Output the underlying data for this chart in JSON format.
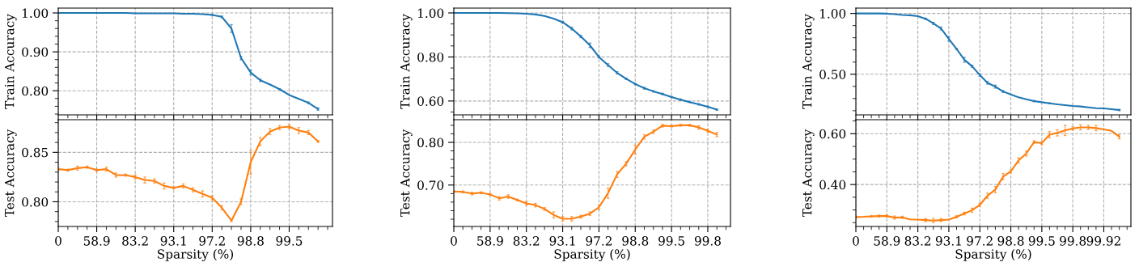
{
  "chart_data": [
    {
      "type": "line",
      "ylabel": "Train Accuracy",
      "tick_labels": "y",
      "grid": true,
      "ylim": [
        0.738,
        1.0125
      ],
      "categories": [
        "0",
        null,
        null,
        null,
        "58.9",
        null,
        null,
        null,
        "83.2",
        null,
        null,
        null,
        "93.1",
        null,
        null,
        null,
        "97.2",
        null,
        null,
        null,
        "98.8",
        null,
        null,
        null,
        "99.5",
        null,
        null,
        null,
        null
      ],
      "yticks": [
        {
          "value": 0.8,
          "label": "0.80"
        },
        {
          "value": 0.9,
          "label": "0.90"
        },
        {
          "value": 1.0,
          "label": "1.00"
        },
        {
          "value": 0.74,
          "label": null
        },
        {
          "value": 0.76,
          "label": null
        },
        {
          "value": 0.78,
          "label": null
        },
        {
          "value": 0.82,
          "label": null
        },
        {
          "value": 0.84,
          "label": null
        },
        {
          "value": 0.86,
          "label": null
        },
        {
          "value": 0.88,
          "label": null
        },
        {
          "value": 0.92,
          "label": null
        },
        {
          "value": 0.94,
          "label": null
        },
        {
          "value": 0.96,
          "label": null
        },
        {
          "value": 0.98,
          "label": null
        }
      ],
      "series": [
        {
          "color": "#1f77b4",
          "values": [
            1.0,
            1.0,
            1.0,
            1.0,
            1.0,
            1.0,
            1.0,
            1.0,
            0.999,
            0.999,
            0.999,
            0.999,
            0.999,
            0.998,
            0.998,
            0.997,
            0.995,
            0.99,
            0.96,
            0.884,
            0.847,
            0.827,
            0.816,
            0.804,
            0.789,
            0.779,
            0.769,
            0.753,
            null
          ],
          "errors": [
            null,
            null,
            null,
            null,
            null,
            null,
            null,
            null,
            null,
            null,
            null,
            null,
            null,
            null,
            null,
            null,
            0.001,
            0.002,
            0.01,
            0.004,
            0.006,
            0.003,
            null,
            0.001,
            null,
            null,
            0.002,
            0.003,
            null
          ]
        }
      ]
    },
    {
      "type": "line",
      "ylabel": "Test Accuracy",
      "xlabel": "Sparsity (%)",
      "grid": true,
      "ylim": [
        0.775,
        0.883
      ],
      "categories": [
        "0",
        null,
        null,
        null,
        "58.9",
        null,
        null,
        null,
        "83.2",
        null,
        null,
        null,
        "93.1",
        null,
        null,
        null,
        "97.2",
        null,
        null,
        null,
        "98.8",
        null,
        null,
        null,
        "99.5",
        null,
        null,
        null,
        null
      ],
      "yticks": [
        {
          "value": 0.8,
          "label": "0.80"
        },
        {
          "value": 0.85,
          "label": "0.85"
        },
        {
          "value": 0.78,
          "label": null
        },
        {
          "value": 0.79,
          "label": null
        },
        {
          "value": 0.81,
          "label": null
        },
        {
          "value": 0.82,
          "label": null
        },
        {
          "value": 0.83,
          "label": null
        },
        {
          "value": 0.84,
          "label": null
        },
        {
          "value": 0.86,
          "label": null
        },
        {
          "value": 0.87,
          "label": null
        },
        {
          "value": 0.88,
          "label": null
        }
      ],
      "series": [
        {
          "color": "#ff7f0e",
          "values": [
            0.833,
            0.832,
            0.834,
            0.835,
            0.832,
            0.833,
            0.827,
            0.827,
            0.825,
            0.822,
            0.821,
            0.816,
            0.814,
            0.816,
            0.812,
            0.808,
            0.804,
            0.794,
            0.781,
            0.8,
            0.84,
            0.861,
            0.871,
            0.875,
            0.876,
            0.872,
            0.87,
            0.861,
            null
          ],
          "errors": [
            0.001,
            0.001,
            0.002,
            0.001,
            0.001,
            0.002,
            0.002,
            0.001,
            0.002,
            0.003,
            0.002,
            0.003,
            0.001,
            0.002,
            0.002,
            0.003,
            0.002,
            0.002,
            0.001,
            0.003,
            0.012,
            0.004,
            0.003,
            0.002,
            0.002,
            0.003,
            0.002,
            0.001,
            null
          ]
        }
      ]
    },
    {
      "type": "line",
      "ylabel": "Train Accuracy",
      "tick_labels": "y",
      "grid": true,
      "ylim": [
        0.537,
        1.022
      ],
      "categories": [
        "0",
        null,
        null,
        null,
        "58.9",
        null,
        null,
        null,
        "83.2",
        null,
        null,
        null,
        "93.1",
        null,
        null,
        null,
        "97.2",
        null,
        null,
        null,
        "98.8",
        null,
        null,
        null,
        "99.5",
        null,
        null,
        null,
        "99.8",
        null,
        null
      ],
      "yticks": [
        {
          "value": 0.6,
          "label": "0.60"
        },
        {
          "value": 0.8,
          "label": "0.80"
        },
        {
          "value": 1.0,
          "label": "1.00"
        },
        {
          "value": 0.55,
          "label": null
        },
        {
          "value": 0.65,
          "label": null
        },
        {
          "value": 0.7,
          "label": null
        },
        {
          "value": 0.75,
          "label": null
        },
        {
          "value": 0.85,
          "label": null
        },
        {
          "value": 0.9,
          "label": null
        },
        {
          "value": 0.95,
          "label": null
        }
      ],
      "series": [
        {
          "color": "#1f77b4",
          "values": [
            1.0,
            1.0,
            1.0,
            1.0,
            1.0,
            1.0,
            0.999,
            0.998,
            0.996,
            0.993,
            0.986,
            0.974,
            0.958,
            0.929,
            0.893,
            0.853,
            0.8,
            0.763,
            0.728,
            0.701,
            0.677,
            0.658,
            0.644,
            0.632,
            0.618,
            0.606,
            0.595,
            0.585,
            0.574,
            0.561,
            null
          ],
          "errors": [
            null,
            null,
            null,
            null,
            null,
            null,
            null,
            null,
            null,
            null,
            null,
            null,
            0.004,
            0.006,
            0.005,
            0.01,
            0.004,
            0.006,
            0.005,
            0.003,
            0.003,
            0.004,
            0.003,
            0.003,
            0.002,
            0.003,
            0.002,
            0.003,
            0.003,
            0.003,
            null
          ]
        }
      ]
    },
    {
      "type": "line",
      "ylabel": "Test Accuracy",
      "xlabel": "Sparsity (%)",
      "grid": true,
      "ylim": [
        0.603,
        0.853
      ],
      "categories": [
        "0",
        null,
        null,
        null,
        "58.9",
        null,
        null,
        null,
        "83.2",
        null,
        null,
        null,
        "93.1",
        null,
        null,
        null,
        "97.2",
        null,
        null,
        null,
        "98.8",
        null,
        null,
        null,
        "99.5",
        null,
        null,
        null,
        "99.8",
        null,
        null
      ],
      "yticks": [
        {
          "value": 0.7,
          "label": "0.70"
        },
        {
          "value": 0.8,
          "label": "0.80"
        },
        {
          "value": 0.62,
          "label": null
        },
        {
          "value": 0.64,
          "label": null
        },
        {
          "value": 0.66,
          "label": null
        },
        {
          "value": 0.68,
          "label": null
        },
        {
          "value": 0.72,
          "label": null
        },
        {
          "value": 0.74,
          "label": null
        },
        {
          "value": 0.76,
          "label": null
        },
        {
          "value": 0.78,
          "label": null
        },
        {
          "value": 0.82,
          "label": null
        },
        {
          "value": 0.84,
          "label": null
        }
      ],
      "series": [
        {
          "color": "#ff7f0e",
          "values": [
            0.685,
            0.684,
            0.68,
            0.682,
            0.678,
            0.669,
            0.673,
            0.665,
            0.657,
            0.653,
            0.644,
            0.63,
            0.621,
            0.621,
            0.626,
            0.633,
            0.648,
            0.681,
            0.725,
            0.75,
            0.783,
            0.813,
            0.825,
            0.839,
            0.838,
            0.84,
            0.84,
            0.835,
            0.827,
            0.818,
            null
          ],
          "errors": [
            0.002,
            0.002,
            0.003,
            0.002,
            0.002,
            0.004,
            0.004,
            0.002,
            0.004,
            0.004,
            0.003,
            0.007,
            0.005,
            0.005,
            0.003,
            0.004,
            0.005,
            0.012,
            0.007,
            0.005,
            0.01,
            0.005,
            0.004,
            0.003,
            0.002,
            0.002,
            0.002,
            0.004,
            0.003,
            0.005,
            null
          ]
        }
      ]
    },
    {
      "type": "line",
      "ylabel": "Train Accuracy",
      "tick_labels": "y",
      "grid": true,
      "ylim": [
        0.166,
        1.044
      ],
      "categories": [
        "0",
        null,
        null,
        null,
        "58.9",
        null,
        null,
        null,
        "83.2",
        null,
        null,
        null,
        "93.1",
        null,
        null,
        null,
        "97.2",
        null,
        null,
        null,
        "98.8",
        null,
        null,
        null,
        "99.5",
        null,
        null,
        null,
        "99.8",
        null,
        null,
        null,
        "99.92",
        null,
        null,
        null
      ],
      "yticks": [
        {
          "value": 0.5,
          "label": "0.50"
        },
        {
          "value": 1.0,
          "label": "1.00"
        },
        {
          "value": 0.2,
          "label": null
        },
        {
          "value": 0.3,
          "label": null
        },
        {
          "value": 0.4,
          "label": null
        },
        {
          "value": 0.6,
          "label": null
        },
        {
          "value": 0.7,
          "label": null
        },
        {
          "value": 0.8,
          "label": null
        },
        {
          "value": 0.9,
          "label": null
        }
      ],
      "series": [
        {
          "color": "#1f77b4",
          "values": [
            1.0,
            1.0,
            1.0,
            1.0,
            0.998,
            0.994,
            0.988,
            0.985,
            0.978,
            0.956,
            0.918,
            0.876,
            0.79,
            0.708,
            0.619,
            0.566,
            0.493,
            0.429,
            0.398,
            0.358,
            0.334,
            0.31,
            0.294,
            0.279,
            0.27,
            0.261,
            0.252,
            0.246,
            0.239,
            0.235,
            0.228,
            0.221,
            0.219,
            0.213,
            0.206,
            null
          ],
          "errors": [
            null,
            null,
            null,
            null,
            null,
            null,
            null,
            null,
            null,
            0.005,
            0.008,
            0.012,
            0.018,
            0.005,
            0.02,
            0.008,
            0.01,
            0.01,
            0.012,
            0.008,
            null,
            null,
            null,
            0.005,
            null,
            0.004,
            null,
            null,
            null,
            null,
            null,
            null,
            null,
            null,
            0.005,
            null
          ]
        }
      ]
    },
    {
      "type": "line",
      "ylabel": "Test Accuracy",
      "xlabel": "Sparsity (%)",
      "grid": true,
      "ylim": [
        0.235,
        0.655
      ],
      "categories": [
        "0",
        null,
        null,
        null,
        "58.9",
        null,
        null,
        null,
        "83.2",
        null,
        null,
        null,
        "93.1",
        null,
        null,
        null,
        "97.2",
        null,
        null,
        null,
        "98.8",
        null,
        null,
        null,
        "99.5",
        null,
        null,
        null,
        "99.8",
        null,
        null,
        null,
        "99.92",
        null,
        null,
        null
      ],
      "yticks": [
        {
          "value": 0.4,
          "label": "0.40"
        },
        {
          "value": 0.6,
          "label": "0.60"
        },
        {
          "value": 0.25,
          "label": null
        },
        {
          "value": 0.3,
          "label": null
        },
        {
          "value": 0.35,
          "label": null
        },
        {
          "value": 0.45,
          "label": null
        },
        {
          "value": 0.5,
          "label": null
        },
        {
          "value": 0.55,
          "label": null
        },
        {
          "value": 0.65,
          "label": null
        }
      ],
      "series": [
        {
          "color": "#ff7f0e",
          "values": [
            0.272,
            0.273,
            0.275,
            0.276,
            0.276,
            0.27,
            0.271,
            0.263,
            0.262,
            0.26,
            0.258,
            0.26,
            0.262,
            0.273,
            0.286,
            0.299,
            0.32,
            0.356,
            0.38,
            0.431,
            0.452,
            0.495,
            0.522,
            0.567,
            0.563,
            0.596,
            0.603,
            0.613,
            0.621,
            0.625,
            0.625,
            0.622,
            0.617,
            0.611,
            0.588,
            null
          ],
          "errors": [
            0.003,
            null,
            0.003,
            0.004,
            0.004,
            0.006,
            0.004,
            null,
            null,
            0.006,
            0.008,
            0.006,
            null,
            0.004,
            0.005,
            0.008,
            0.006,
            0.01,
            0.012,
            0.012,
            0.006,
            0.01,
            0.01,
            0.005,
            0.006,
            0.012,
            0.012,
            0.02,
            0.006,
            0.01,
            0.008,
            0.01,
            null,
            null,
            0.008,
            null
          ]
        }
      ]
    }
  ]
}
